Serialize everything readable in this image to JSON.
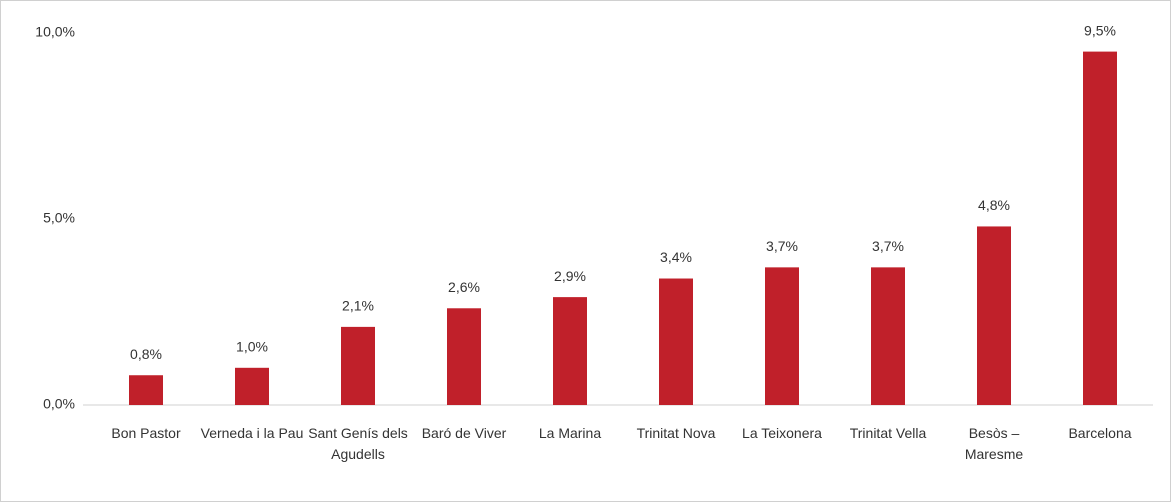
{
  "chart_data": {
    "type": "bar",
    "categories": [
      "Bon Pastor",
      "Verneda i la Pau",
      "Sant Genís dels Agudells",
      "Baró de Viver",
      "La Marina",
      "Trinitat Nova",
      "La Teixonera",
      "Trinitat Vella",
      "Besòs – Maresme",
      "Barcelona"
    ],
    "values": [
      0.8,
      1.0,
      2.1,
      2.6,
      2.9,
      3.4,
      3.7,
      3.7,
      4.8,
      9.5
    ],
    "value_labels": [
      "0,8%",
      "1,0%",
      "2,1%",
      "2,6%",
      "2,9%",
      "3,4%",
      "3,7%",
      "3,7%",
      "4,8%",
      "9,5%"
    ],
    "color": "#c0202a",
    "ylim": [
      0,
      10
    ],
    "yticks": [
      {
        "value": 0,
        "label": "0,0%"
      },
      {
        "value": 5,
        "label": "5,0%"
      },
      {
        "value": 10,
        "label": "10,0%"
      }
    ],
    "grid": false
  }
}
